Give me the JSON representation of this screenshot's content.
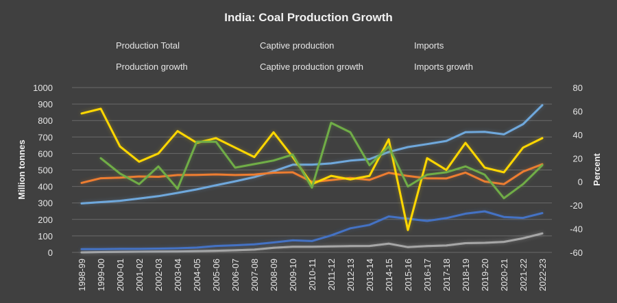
{
  "chart_data": {
    "type": "line",
    "title": "India: Coal Production Growth",
    "ylabel_left": "Million tonnes",
    "ylabel_right": "Percent",
    "ylim_left": [
      0,
      1000
    ],
    "yticks_left": [
      "0",
      "100",
      "200",
      "300",
      "400",
      "500",
      "600",
      "700",
      "800",
      "900",
      "1000"
    ],
    "ylim_right": [
      -60,
      80
    ],
    "yticks_right": [
      "-60",
      "-40",
      "-20",
      "0",
      "20",
      "40",
      "60",
      "80"
    ],
    "grid": true,
    "legend_position": "top",
    "categories": [
      "1998-99",
      "1999-00",
      "2000-01",
      "2001-02",
      "2002-03",
      "2003-04",
      "2004-05",
      "2005-06",
      "2006-07",
      "2007-08",
      "2008-09",
      "2009-10",
      "2010-11",
      "2011-12",
      "2012-13",
      "2013-14",
      "2014-15",
      "2015-16",
      "2016-17",
      "2017-18",
      "2018-19",
      "2019-20",
      "2020-21",
      "2021-22",
      "2022-23"
    ],
    "series": [
      {
        "name": "Production Total",
        "axis": "left",
        "color": "#6fa8dc",
        "glow": "#6fa8dc",
        "values": [
          297,
          305,
          313,
          327,
          341,
          361,
          382,
          407,
          431,
          457,
          492,
          532,
          532,
          540,
          557,
          566,
          609,
          639,
          657,
          676,
          729,
          731,
          716,
          778,
          893
        ]
      },
      {
        "name": "Captive production",
        "axis": "left",
        "color": "#a6a6a6",
        "glow": "#d9d9d9",
        "values": [
          0,
          2,
          3,
          4,
          5,
          6,
          8,
          10,
          13,
          17,
          28,
          34,
          34,
          36,
          38,
          39,
          53,
          32,
          38,
          42,
          56,
          58,
          64,
          86,
          115
        ]
      },
      {
        "name": "Imports",
        "axis": "left",
        "color": "#4472c4",
        "glow": "#4472c4",
        "values": [
          20,
          20,
          21,
          21,
          23,
          25,
          29,
          39,
          43,
          49,
          60,
          73,
          69,
          103,
          146,
          167,
          218,
          204,
          191,
          208,
          235,
          249,
          215,
          209,
          238
        ]
      },
      {
        "name": "Production growth",
        "axis": "right",
        "color": "#ed7d31",
        "glow": "#ed7d31",
        "values": [
          -1,
          3,
          3.5,
          4.5,
          4.2,
          5.7,
          5.8,
          6.2,
          5.7,
          6.1,
          7.7,
          8,
          -0.1,
          1.4,
          3.2,
          1.6,
          7.6,
          4.9,
          2.9,
          2.8,
          7.8,
          0.2,
          -2,
          8.6,
          14.8
        ]
      },
      {
        "name": "Captive production growth",
        "axis": "right",
        "color": "#ffd700",
        "glow": "#ffd700",
        "values": [
          58,
          62,
          30,
          17,
          24,
          43,
          33,
          37,
          29,
          21,
          42,
          21,
          -2,
          5,
          2,
          5,
          36,
          -41,
          20,
          10,
          33,
          12,
          8,
          29,
          37
        ]
      },
      {
        "name": "Imports growth",
        "axis": "right",
        "color": "#70ad47",
        "glow": "#70ad47",
        "values": [
          null,
          20,
          7,
          -2,
          13,
          -6,
          34,
          34,
          12,
          15,
          18,
          23,
          -5,
          50,
          42,
          14,
          30,
          -4,
          6,
          8,
          13,
          6,
          -14,
          -2,
          14
        ]
      }
    ]
  }
}
